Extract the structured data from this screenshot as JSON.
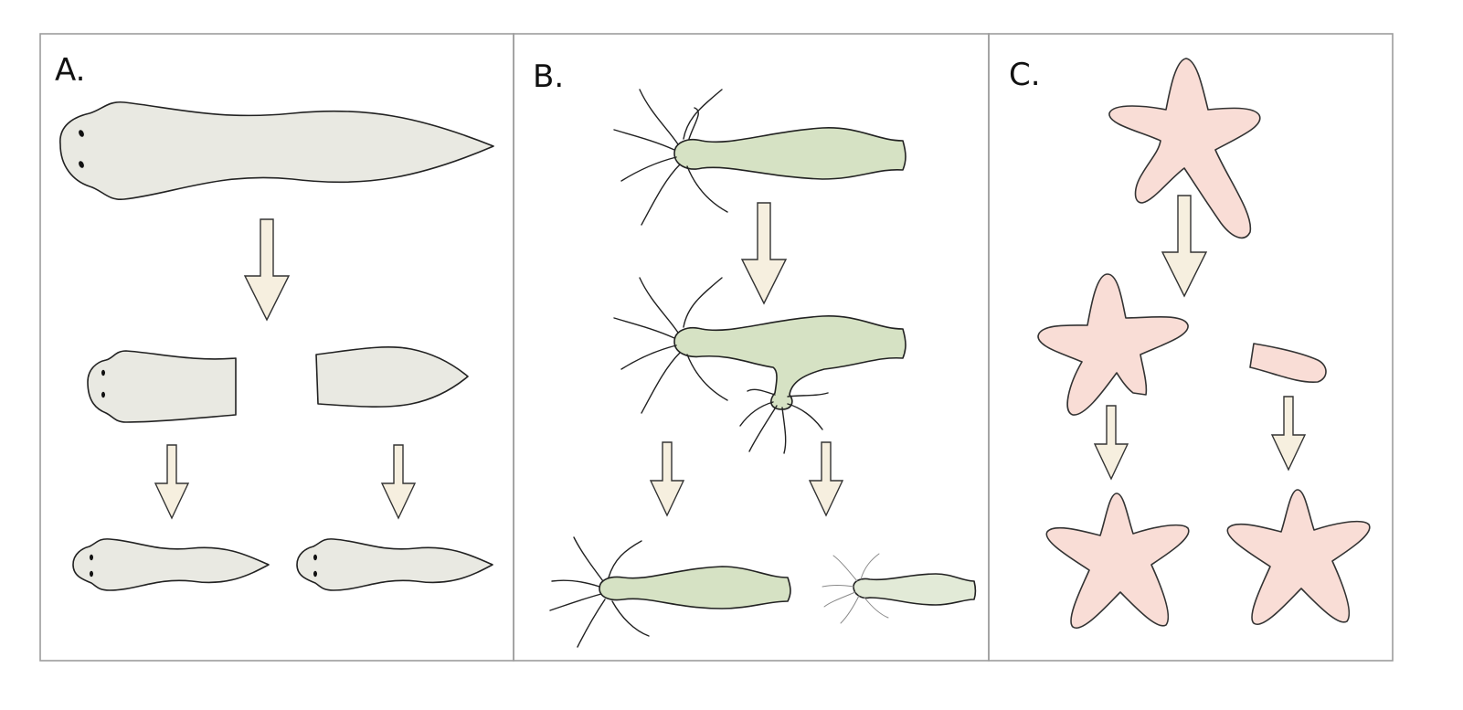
{
  "panels": [
    {
      "label": "A."
    },
    {
      "label": "B."
    },
    {
      "label": "C."
    }
  ],
  "colors": {
    "planaria_fill": "#e9e9e2",
    "hydra_fill": "#d6e2c4",
    "hydra_faint_fill": "#e2ead7",
    "starfish_fill": "#f9ddd6",
    "arrow_fill": "#f6efdf",
    "frame_stroke": "#9c9c9c"
  }
}
